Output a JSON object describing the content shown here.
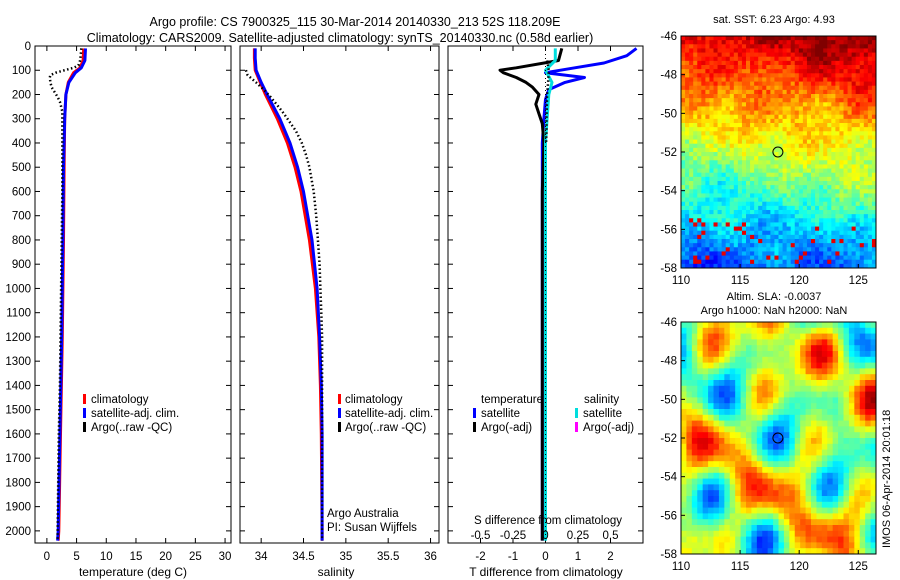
{
  "header": {
    "line1": "Argo profile: CS 7900325_115 30-Mar-2014 20140330_213 52S 118.209E",
    "line2": "Climatology: CARS2009. Satellite-adjusted climatology: synTS_20140330.nc (0.58d earlier)"
  },
  "chart_data": [
    {
      "type": "line",
      "xlabel": "temperature (deg C)",
      "xlim": [
        -2,
        31
      ],
      "xticks": [
        0,
        5,
        10,
        15,
        20,
        25,
        30
      ],
      "ylim": [
        2050,
        0
      ],
      "yticks": [
        0,
        100,
        200,
        300,
        400,
        500,
        600,
        700,
        800,
        900,
        1000,
        1100,
        1200,
        1300,
        1400,
        1500,
        1600,
        1700,
        1800,
        1900,
        2000
      ],
      "grid": false,
      "legend": {
        "placement": "lower-center",
        "entries": [
          "climatology",
          "satellite-adj. clim.",
          "Argo(..raw -QC)"
        ]
      },
      "series": [
        {
          "color": "#ff0000",
          "style": "line",
          "y": [
            10,
            60,
            90,
            110,
            150,
            200,
            300,
            500,
            800,
            1200,
            1600,
            2000,
            2040
          ],
          "x": [
            6.2,
            6.1,
            5.6,
            4.5,
            3.6,
            3.2,
            3.0,
            2.9,
            2.8,
            2.6,
            2.3,
            2.0,
            1.9
          ]
        },
        {
          "color": "#0000ff",
          "style": "line",
          "y": [
            10,
            60,
            90,
            110,
            150,
            200,
            300,
            500,
            800,
            1200,
            1600,
            2000,
            2040
          ],
          "x": [
            6.5,
            6.4,
            5.8,
            4.8,
            3.7,
            3.2,
            3.0,
            2.8,
            2.7,
            2.5,
            2.2,
            1.9,
            1.8
          ]
        },
        {
          "color": "#000000",
          "style": "dots",
          "y": [
            10,
            40,
            60,
            80,
            90,
            100,
            110,
            120,
            130,
            150,
            170,
            190,
            210,
            230,
            250,
            270,
            300,
            350,
            400,
            500,
            600,
            800,
            1000,
            1200,
            1400,
            1600,
            1800,
            2000,
            2040
          ],
          "x": [
            5.8,
            5.7,
            5.6,
            5.3,
            4.5,
            3.0,
            1.5,
            0.6,
            0.5,
            0.6,
            0.8,
            1.3,
            1.8,
            2.2,
            2.4,
            2.6,
            2.6,
            2.6,
            2.6,
            2.6,
            2.6,
            2.5,
            2.4,
            2.3,
            2.2,
            2.0,
            1.9,
            1.8,
            1.8
          ]
        }
      ]
    },
    {
      "type": "line",
      "xlabel": "salinity",
      "xlim": [
        33.75,
        36.1
      ],
      "xticks": [
        34,
        34.5,
        35,
        35.5,
        36
      ],
      "ylim": [
        2050,
        0
      ],
      "grid": false,
      "legend": {
        "placement": "lower-center",
        "entries": [
          "climatology",
          "satellite-adj. clim.",
          "Argo(..raw -QC)"
        ]
      },
      "annotations": [
        "Argo Australia",
        "PI: Susan Wijffels"
      ],
      "series": [
        {
          "color": "#ff0000",
          "style": "line",
          "y": [
            10,
            50,
            100,
            150,
            200,
            300,
            400,
            500,
            600,
            800,
            1000,
            1200,
            1400,
            1600,
            2000,
            2040
          ],
          "x": [
            33.92,
            33.92,
            33.93,
            33.99,
            34.05,
            34.19,
            34.31,
            34.4,
            34.47,
            34.57,
            34.64,
            34.68,
            34.7,
            34.71,
            34.72,
            34.72
          ]
        },
        {
          "color": "#0000ff",
          "style": "line",
          "y": [
            10,
            50,
            100,
            150,
            200,
            300,
            400,
            500,
            600,
            800,
            1000,
            1200,
            1400,
            1600,
            2000,
            2040
          ],
          "x": [
            33.93,
            33.93,
            33.94,
            34.0,
            34.07,
            34.22,
            34.34,
            34.43,
            34.5,
            34.6,
            34.66,
            34.69,
            34.71,
            34.72,
            34.72,
            34.72
          ]
        },
        {
          "color": "#000000",
          "style": "dots",
          "y": [
            100,
            120,
            150,
            180,
            210,
            240,
            270,
            300,
            350,
            400,
            450,
            500,
            600,
            700,
            800,
            900,
            1000,
            1100,
            1200,
            1300,
            1400,
            1600,
            1800,
            2000,
            2040
          ],
          "x": [
            33.82,
            33.84,
            33.94,
            34.03,
            34.11,
            34.18,
            34.25,
            34.31,
            34.41,
            34.48,
            34.53,
            34.57,
            34.62,
            34.65,
            34.67,
            34.69,
            34.7,
            34.71,
            34.72,
            34.72,
            34.72,
            34.72,
            34.72,
            34.72,
            34.72
          ]
        }
      ]
    },
    {
      "type": "line",
      "xlabel": "T difference from climatology",
      "xlabel_top": "S difference from climatology",
      "xlim": [
        -3,
        3
      ],
      "xticks": [
        -2,
        -1,
        0,
        1,
        2
      ],
      "xticks_top": [
        "-0.5",
        "-0.25",
        "0",
        "0.25",
        "0.5"
      ],
      "ylim": [
        2050,
        0
      ],
      "grid": false,
      "legend": {
        "placement": "lower-center",
        "headings": [
          "temperature",
          "salinity"
        ],
        "entries": [
          "satellite",
          "Argo(-adj)",
          "satellite",
          "Argo(-adj)"
        ]
      },
      "series": [
        {
          "color": "#0000ff",
          "style": "line",
          "y": [
            10,
            40,
            70,
            90,
            110,
            130,
            150,
            180,
            220,
            300,
            400,
            600,
            800,
            1000,
            1500,
            2000,
            2040
          ],
          "x": [
            2.8,
            2.5,
            1.8,
            0.9,
            0.0,
            1.2,
            0.6,
            0.1,
            0.0,
            -0.05,
            -0.1,
            -0.1,
            -0.1,
            -0.1,
            -0.1,
            -0.1,
            -0.1
          ]
        },
        {
          "color": "#000000",
          "style": "line",
          "y": [
            10,
            60,
            90,
            100,
            110,
            120,
            130,
            150,
            170,
            200,
            240,
            280,
            320,
            400,
            600,
            1000,
            1500,
            2000,
            2040
          ],
          "x": [
            0.5,
            0.4,
            -0.9,
            -1.4,
            -1.3,
            -1.1,
            -0.9,
            -0.6,
            -0.4,
            -0.2,
            -0.3,
            -0.2,
            -0.1,
            -0.05,
            -0.1,
            -0.1,
            -0.1,
            -0.1,
            -0.1
          ]
        },
        {
          "color": "#00dddd",
          "style": "line",
          "y": [
            10,
            60,
            100,
            150,
            200,
            300,
            400,
            500,
            600,
            800,
            1000,
            1500,
            2000,
            2040
          ],
          "x": [
            0.3,
            0.3,
            0.0,
            0.2,
            0.1,
            0.05,
            0.0,
            0.0,
            0.0,
            0.0,
            0.0,
            0.0,
            0.0,
            0.0
          ]
        },
        {
          "color": "#000000",
          "style": "dots",
          "y": [
            60,
            100,
            150,
            200,
            250,
            300,
            350,
            400
          ],
          "x": [
            0.05,
            0.1,
            0.08,
            0.05,
            0.04,
            0.03,
            0.03,
            0.02
          ]
        }
      ]
    },
    {
      "type": "heatmap",
      "title": "sat. SST: 6.23 Argo: 4.93",
      "xlim": [
        110,
        126.5
      ],
      "ylim": [
        -58,
        -46
      ],
      "xticks": [
        110,
        115,
        120,
        125
      ],
      "yticks": [
        -46,
        -48,
        -50,
        -52,
        -54,
        -56,
        -58
      ],
      "marker": {
        "lon": 118.2,
        "lat": -52.0
      }
    },
    {
      "type": "heatmap",
      "title": "Altim. SLA: -0.0037",
      "subtitle": "Argo h1000: NaN h2000: NaN",
      "xlim": [
        110,
        126.5
      ],
      "ylim": [
        -58,
        -46
      ],
      "xticks": [
        110,
        115,
        120,
        125
      ],
      "yticks": [
        -46,
        -48,
        -50,
        -52,
        -54,
        -56,
        -58
      ],
      "marker": {
        "lon": 118.2,
        "lat": -52.0
      }
    }
  ],
  "stamp": "IMOS 06-Apr-2014 20:01:18",
  "colors": {
    "climatology": "#ff0000",
    "satellite": "#0000ff",
    "argo": "#000000",
    "salinity_sat": "#00dddd",
    "salinity_argo": "#ff00ff"
  }
}
